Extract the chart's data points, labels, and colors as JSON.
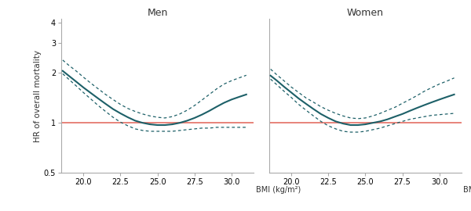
{
  "title_men": "Men",
  "title_women": "Women",
  "ylabel": "HR of overall mortality",
  "xlabel": "BMI (kg/m²)",
  "xlim": [
    18.5,
    31.5
  ],
  "ylim_log": [
    -0.301,
    0.623
  ],
  "ylim": [
    0.5,
    4.2
  ],
  "yticks": [
    0.5,
    1,
    2,
    3,
    4
  ],
  "ytick_labels": [
    "0.5",
    "1",
    "2",
    "3",
    "4"
  ],
  "xticks": [
    20.0,
    22.5,
    25.0,
    27.5,
    30.0
  ],
  "xtick_labels": [
    "20.0",
    "22.5",
    "25.0",
    "27.5",
    "30.0"
  ],
  "ref_line_y": 1.0,
  "ref_line_color": "#e8837a",
  "line_color": "#1d6068",
  "ci_color": "#1d6068",
  "spine_color": "#aaaaaa",
  "background_color": "#ffffff",
  "men_bmi": [
    18.6,
    19.0,
    19.5,
    20.0,
    20.5,
    21.0,
    21.5,
    22.0,
    22.5,
    23.0,
    23.5,
    24.0,
    24.5,
    25.0,
    25.5,
    26.0,
    26.5,
    27.0,
    27.5,
    28.0,
    28.5,
    29.0,
    29.5,
    30.0,
    30.5,
    31.0
  ],
  "men_hr": [
    2.05,
    1.92,
    1.77,
    1.63,
    1.51,
    1.4,
    1.3,
    1.21,
    1.14,
    1.08,
    1.03,
    1.0,
    0.98,
    0.97,
    0.97,
    0.98,
    1.0,
    1.03,
    1.07,
    1.12,
    1.18,
    1.25,
    1.32,
    1.38,
    1.43,
    1.48
  ],
  "men_ci_lo": [
    1.97,
    1.83,
    1.67,
    1.52,
    1.39,
    1.27,
    1.17,
    1.08,
    1.01,
    0.96,
    0.92,
    0.9,
    0.89,
    0.89,
    0.89,
    0.89,
    0.9,
    0.91,
    0.92,
    0.93,
    0.93,
    0.94,
    0.94,
    0.94,
    0.94,
    0.94
  ],
  "men_ci_hi": [
    2.38,
    2.22,
    2.05,
    1.88,
    1.73,
    1.6,
    1.48,
    1.38,
    1.29,
    1.22,
    1.17,
    1.13,
    1.1,
    1.08,
    1.07,
    1.09,
    1.13,
    1.19,
    1.27,
    1.37,
    1.48,
    1.6,
    1.71,
    1.79,
    1.86,
    1.93
  ],
  "women_bmi": [
    18.6,
    19.0,
    19.5,
    20.0,
    20.5,
    21.0,
    21.5,
    22.0,
    22.5,
    23.0,
    23.5,
    24.0,
    24.5,
    25.0,
    25.5,
    26.0,
    26.5,
    27.0,
    27.5,
    28.0,
    28.5,
    29.0,
    29.5,
    30.0,
    30.5,
    31.0
  ],
  "women_hr": [
    1.92,
    1.8,
    1.65,
    1.52,
    1.4,
    1.3,
    1.21,
    1.13,
    1.07,
    1.02,
    0.99,
    0.97,
    0.97,
    0.98,
    1.0,
    1.02,
    1.05,
    1.09,
    1.13,
    1.18,
    1.23,
    1.28,
    1.33,
    1.38,
    1.43,
    1.48
  ],
  "women_ci_lo": [
    1.83,
    1.7,
    1.55,
    1.42,
    1.29,
    1.19,
    1.1,
    1.02,
    0.96,
    0.92,
    0.89,
    0.88,
    0.88,
    0.89,
    0.91,
    0.93,
    0.96,
    0.99,
    1.02,
    1.05,
    1.07,
    1.09,
    1.11,
    1.12,
    1.13,
    1.14
  ],
  "women_ci_hi": [
    2.1,
    1.95,
    1.79,
    1.64,
    1.52,
    1.41,
    1.33,
    1.25,
    1.19,
    1.14,
    1.1,
    1.07,
    1.06,
    1.07,
    1.1,
    1.14,
    1.19,
    1.24,
    1.31,
    1.38,
    1.46,
    1.55,
    1.63,
    1.71,
    1.78,
    1.86
  ]
}
